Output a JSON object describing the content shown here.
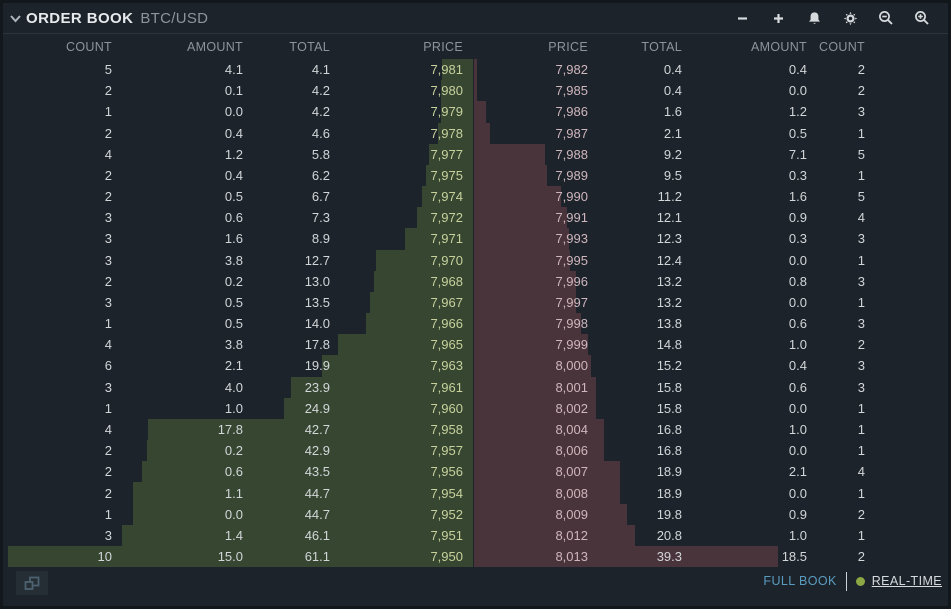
{
  "header": {
    "title": "ORDER BOOK",
    "symbol": "BTC/USD",
    "tools": [
      "minus",
      "plus",
      "bell",
      "gear",
      "zoom-out",
      "zoom-in"
    ]
  },
  "columns": {
    "bids": {
      "count": "COUNT",
      "amount": "AMOUNT",
      "total": "TOTAL",
      "price": "PRICE"
    },
    "asks": {
      "price": "PRICE",
      "total": "TOTAL",
      "amount": "AMOUNT",
      "count": "COUNT"
    }
  },
  "depth": {
    "max_total": 61.1
  },
  "bids": [
    {
      "count": "5",
      "amount": "4.1",
      "total": "4.1",
      "price": "7,981"
    },
    {
      "count": "2",
      "amount": "0.1",
      "total": "4.2",
      "price": "7,980"
    },
    {
      "count": "1",
      "amount": "0.0",
      "total": "4.2",
      "price": "7,979"
    },
    {
      "count": "2",
      "amount": "0.4",
      "total": "4.6",
      "price": "7,978"
    },
    {
      "count": "4",
      "amount": "1.2",
      "total": "5.8",
      "price": "7,977"
    },
    {
      "count": "2",
      "amount": "0.4",
      "total": "6.2",
      "price": "7,975"
    },
    {
      "count": "2",
      "amount": "0.5",
      "total": "6.7",
      "price": "7,974"
    },
    {
      "count": "3",
      "amount": "0.6",
      "total": "7.3",
      "price": "7,972"
    },
    {
      "count": "3",
      "amount": "1.6",
      "total": "8.9",
      "price": "7,971"
    },
    {
      "count": "3",
      "amount": "3.8",
      "total": "12.7",
      "price": "7,970"
    },
    {
      "count": "2",
      "amount": "0.2",
      "total": "13.0",
      "price": "7,968"
    },
    {
      "count": "3",
      "amount": "0.5",
      "total": "13.5",
      "price": "7,967"
    },
    {
      "count": "1",
      "amount": "0.5",
      "total": "14.0",
      "price": "7,966"
    },
    {
      "count": "4",
      "amount": "3.8",
      "total": "17.8",
      "price": "7,965"
    },
    {
      "count": "6",
      "amount": "2.1",
      "total": "19.9",
      "price": "7,963"
    },
    {
      "count": "3",
      "amount": "4.0",
      "total": "23.9",
      "price": "7,961"
    },
    {
      "count": "1",
      "amount": "1.0",
      "total": "24.9",
      "price": "7,960"
    },
    {
      "count": "4",
      "amount": "17.8",
      "total": "42.7",
      "price": "7,958"
    },
    {
      "count": "2",
      "amount": "0.2",
      "total": "42.9",
      "price": "7,957"
    },
    {
      "count": "2",
      "amount": "0.6",
      "total": "43.5",
      "price": "7,956"
    },
    {
      "count": "2",
      "amount": "1.1",
      "total": "44.7",
      "price": "7,954"
    },
    {
      "count": "1",
      "amount": "0.0",
      "total": "44.7",
      "price": "7,952"
    },
    {
      "count": "3",
      "amount": "1.4",
      "total": "46.1",
      "price": "7,951"
    },
    {
      "count": "10",
      "amount": "15.0",
      "total": "61.1",
      "price": "7,950"
    }
  ],
  "asks": [
    {
      "price": "7,982",
      "total": "0.4",
      "amount": "0.4",
      "count": "2"
    },
    {
      "price": "7,985",
      "total": "0.4",
      "amount": "0.0",
      "count": "2"
    },
    {
      "price": "7,986",
      "total": "1.6",
      "amount": "1.2",
      "count": "3"
    },
    {
      "price": "7,987",
      "total": "2.1",
      "amount": "0.5",
      "count": "1"
    },
    {
      "price": "7,988",
      "total": "9.2",
      "amount": "7.1",
      "count": "5"
    },
    {
      "price": "7,989",
      "total": "9.5",
      "amount": "0.3",
      "count": "1"
    },
    {
      "price": "7,990",
      "total": "11.2",
      "amount": "1.6",
      "count": "5"
    },
    {
      "price": "7,991",
      "total": "12.1",
      "amount": "0.9",
      "count": "4"
    },
    {
      "price": "7,993",
      "total": "12.3",
      "amount": "0.3",
      "count": "3"
    },
    {
      "price": "7,995",
      "total": "12.4",
      "amount": "0.0",
      "count": "1"
    },
    {
      "price": "7,996",
      "total": "13.2",
      "amount": "0.8",
      "count": "3"
    },
    {
      "price": "7,997",
      "total": "13.2",
      "amount": "0.0",
      "count": "1"
    },
    {
      "price": "7,998",
      "total": "13.8",
      "amount": "0.6",
      "count": "3"
    },
    {
      "price": "7,999",
      "total": "14.8",
      "amount": "1.0",
      "count": "2"
    },
    {
      "price": "8,000",
      "total": "15.2",
      "amount": "0.4",
      "count": "3"
    },
    {
      "price": "8,001",
      "total": "15.8",
      "amount": "0.6",
      "count": "3"
    },
    {
      "price": "8,002",
      "total": "15.8",
      "amount": "0.0",
      "count": "1"
    },
    {
      "price": "8,004",
      "total": "16.8",
      "amount": "1.0",
      "count": "1"
    },
    {
      "price": "8,006",
      "total": "16.8",
      "amount": "0.0",
      "count": "1"
    },
    {
      "price": "8,007",
      "total": "18.9",
      "amount": "2.1",
      "count": "4"
    },
    {
      "price": "8,008",
      "total": "18.9",
      "amount": "0.0",
      "count": "1"
    },
    {
      "price": "8,009",
      "total": "19.8",
      "amount": "0.9",
      "count": "2"
    },
    {
      "price": "8,012",
      "total": "20.8",
      "amount": "1.0",
      "count": "1"
    },
    {
      "price": "8,013",
      "total": "39.3",
      "amount": "18.5",
      "count": "2"
    }
  ],
  "colors": {
    "bid_bar": "#364631",
    "ask_bar": "#4a343b",
    "bid_price_text": "#c8d19c",
    "ask_price_text": "#d0b6bd",
    "accent_blue": "#5a9cc0",
    "realtime_dot_green": "#8ba844"
  },
  "footer": {
    "full_book_label": "FULL BOOK",
    "realtime_label": "REAL-TIME"
  }
}
